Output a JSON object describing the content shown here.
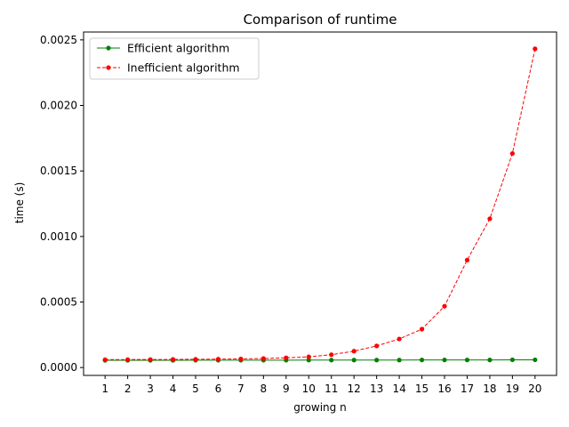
{
  "chart_data": {
    "type": "line",
    "title": "Comparison of runtime",
    "xlabel": "growing n",
    "ylabel": "time (s)",
    "x": [
      1,
      2,
      3,
      4,
      5,
      6,
      7,
      8,
      9,
      10,
      11,
      12,
      13,
      14,
      15,
      16,
      17,
      18,
      19,
      20
    ],
    "xlim": [
      0.05,
      20.95
    ],
    "ylim": [
      -6e-05,
      0.00256
    ],
    "y_ticks": [
      0.0,
      0.0005,
      0.001,
      0.0015,
      0.002,
      0.0025
    ],
    "y_tick_labels": [
      "0.0000",
      "0.0005",
      "0.0010",
      "0.0015",
      "0.0020",
      "0.0025"
    ],
    "grid": false,
    "legend_position": "top-left",
    "series": [
      {
        "name": "Efficient algorithm",
        "color": "#008000",
        "line_style": "solid",
        "marker": "circle",
        "values": [
          5.5e-05,
          5.5e-05,
          5.5e-05,
          5.5e-05,
          5.6e-05,
          5.6e-05,
          5.6e-05,
          5.6e-05,
          5.6e-05,
          5.7e-05,
          5.7e-05,
          5.7e-05,
          5.7e-05,
          5.7e-05,
          5.8e-05,
          5.8e-05,
          5.8e-05,
          5.8e-05,
          5.9e-05,
          5.9e-05
        ]
      },
      {
        "name": "Inefficient algorithm",
        "color": "#ff0000",
        "line_style": "dashed",
        "marker": "circle",
        "values": [
          6e-05,
          6.1e-05,
          6.1e-05,
          6.2e-05,
          6.3e-05,
          6.4e-05,
          6.6e-05,
          6.9e-05,
          7.4e-05,
          8.2e-05,
          9.8e-05,
          0.000125,
          0.000165,
          0.000218,
          0.000293,
          0.000468,
          0.00082,
          0.001135,
          0.001633,
          0.002432
        ]
      }
    ]
  }
}
